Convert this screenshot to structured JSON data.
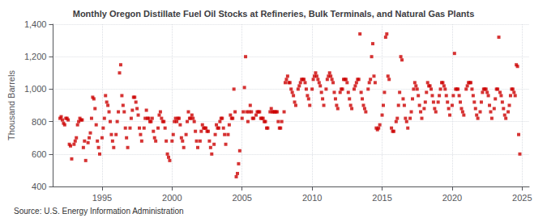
{
  "chart_data": {
    "type": "scatter",
    "title": "Monthly Oregon Distillate Fuel Oil Stocks at Refineries, Bulk Terminals, and Natural Gas Plants",
    "ylabel": "Thousand Barrels",
    "annotations": [
      "Source: U.S. Energy Information Administration"
    ],
    "color": "#cc0000",
    "marker": "square",
    "grid": true,
    "xlim": [
      1991.5,
      2025.5
    ],
    "xticks": [
      1995,
      2000,
      2005,
      2010,
      2015,
      2020,
      2025
    ],
    "ylim": [
      400,
      1400
    ],
    "yticks": [
      400,
      600,
      800,
      {
        "value": 1000,
        "label": "1,000"
      },
      {
        "value": 1200,
        "label": "1,200"
      },
      {
        "value": 1400,
        "label": "1,400"
      }
    ],
    "x": [
      1992.0,
      1992.083,
      1992.167,
      1992.25,
      1992.333,
      1992.417,
      1992.5,
      1992.583,
      1992.667,
      1992.75,
      1992.833,
      1993.0,
      1993.083,
      1993.167,
      1993.25,
      1993.333,
      1993.417,
      1993.5,
      1993.583,
      1993.667,
      1993.75,
      1993.833,
      1994.0,
      1994.083,
      1994.167,
      1994.25,
      1994.333,
      1994.417,
      1994.5,
      1994.583,
      1994.667,
      1994.75,
      1994.833,
      1995.0,
      1995.083,
      1995.167,
      1995.25,
      1995.333,
      1995.417,
      1995.5,
      1995.583,
      1995.667,
      1995.75,
      1995.833,
      1996.0,
      1996.083,
      1996.167,
      1996.25,
      1996.333,
      1996.417,
      1996.5,
      1996.583,
      1996.667,
      1996.75,
      1996.833,
      1997.0,
      1997.083,
      1997.167,
      1997.25,
      1997.333,
      1997.417,
      1997.5,
      1997.583,
      1997.667,
      1997.75,
      1997.833,
      1998.0,
      1998.083,
      1998.167,
      1998.25,
      1998.333,
      1998.417,
      1998.5,
      1998.583,
      1998.667,
      1998.75,
      1998.833,
      1999.0,
      1999.083,
      1999.167,
      1999.25,
      1999.333,
      1999.417,
      1999.5,
      1999.583,
      1999.667,
      1999.75,
      1999.833,
      2000.0,
      2000.083,
      2000.167,
      2000.25,
      2000.333,
      2000.417,
      2000.5,
      2000.583,
      2000.667,
      2000.75,
      2000.833,
      2001.0,
      2001.083,
      2001.167,
      2001.25,
      2001.333,
      2001.417,
      2001.5,
      2001.583,
      2001.667,
      2001.75,
      2001.833,
      2002.0,
      2002.083,
      2002.167,
      2002.25,
      2002.333,
      2002.417,
      2002.5,
      2002.583,
      2002.667,
      2002.75,
      2002.833,
      2003.0,
      2003.083,
      2003.167,
      2003.25,
      2003.333,
      2003.417,
      2003.5,
      2003.583,
      2003.667,
      2003.75,
      2003.833,
      2004.0,
      2004.083,
      2004.167,
      2004.25,
      2004.333,
      2004.417,
      2004.5,
      2004.583,
      2004.667,
      2004.75,
      2004.833,
      2005.0,
      2005.083,
      2005.167,
      2005.25,
      2005.333,
      2005.417,
      2005.5,
      2005.583,
      2005.667,
      2005.75,
      2005.833,
      2006.0,
      2006.083,
      2006.167,
      2006.25,
      2006.333,
      2006.417,
      2006.5,
      2006.583,
      2006.667,
      2006.75,
      2006.833,
      2007.0,
      2007.083,
      2007.167,
      2007.25,
      2007.333,
      2007.417,
      2007.5,
      2007.583,
      2007.667,
      2007.75,
      2007.833,
      2008.0,
      2008.083,
      2008.167,
      2008.25,
      2008.333,
      2008.417,
      2008.5,
      2008.583,
      2008.667,
      2008.75,
      2008.833,
      2009.0,
      2009.083,
      2009.167,
      2009.25,
      2009.333,
      2009.417,
      2009.5,
      2009.583,
      2009.667,
      2009.75,
      2009.833,
      2010.0,
      2010.083,
      2010.167,
      2010.25,
      2010.333,
      2010.417,
      2010.5,
      2010.583,
      2010.667,
      2010.75,
      2010.833,
      2011.0,
      2011.083,
      2011.167,
      2011.25,
      2011.333,
      2011.417,
      2011.5,
      2011.583,
      2011.667,
      2011.75,
      2011.833,
      2012.0,
      2012.083,
      2012.167,
      2012.25,
      2012.333,
      2012.417,
      2012.5,
      2012.583,
      2012.667,
      2012.75,
      2012.833,
      2013.0,
      2013.083,
      2013.167,
      2013.25,
      2013.333,
      2013.417,
      2013.5,
      2013.583,
      2013.667,
      2013.75,
      2013.833,
      2014.0,
      2014.083,
      2014.167,
      2014.25,
      2014.333,
      2014.417,
      2014.5,
      2014.583,
      2014.667,
      2014.75,
      2014.833,
      2015.0,
      2015.083,
      2015.167,
      2015.25,
      2015.333,
      2015.417,
      2015.5,
      2015.667,
      2015.75,
      2015.833,
      2016.0,
      2016.083,
      2016.167,
      2016.25,
      2016.333,
      2016.417,
      2016.5,
      2016.583,
      2016.667,
      2016.75,
      2016.833,
      2017.0,
      2017.083,
      2017.167,
      2017.25,
      2017.333,
      2017.417,
      2017.5,
      2017.583,
      2017.667,
      2017.75,
      2017.833,
      2018.0,
      2018.083,
      2018.167,
      2018.25,
      2018.333,
      2018.417,
      2018.5,
      2018.583,
      2018.667,
      2018.75,
      2018.833,
      2019.0,
      2019.083,
      2019.167,
      2019.25,
      2019.333,
      2019.417,
      2019.5,
      2019.583,
      2019.667,
      2019.75,
      2019.833,
      2020.0,
      2020.083,
      2020.167,
      2020.25,
      2020.333,
      2020.417,
      2020.5,
      2020.583,
      2020.667,
      2020.75,
      2020.833,
      2021.0,
      2021.083,
      2021.167,
      2021.25,
      2021.333,
      2021.417,
      2021.5,
      2021.583,
      2021.667,
      2021.75,
      2021.833,
      2022.0,
      2022.083,
      2022.167,
      2022.25,
      2022.333,
      2022.417,
      2022.5,
      2022.583,
      2022.667,
      2022.75,
      2022.833,
      2023.0,
      2023.083,
      2023.167,
      2023.25,
      2023.333,
      2023.417,
      2023.5,
      2023.583,
      2023.667,
      2023.75,
      2023.833,
      2024.0,
      2024.083,
      2024.167,
      2024.25,
      2024.333,
      2024.417,
      2024.5,
      2024.583,
      2024.667,
      2024.75,
      2024.833
    ],
    "values": [
      820,
      830,
      810,
      790,
      780,
      820,
      820,
      810,
      660,
      650,
      570,
      660,
      680,
      700,
      780,
      800,
      820,
      810,
      810,
      640,
      680,
      560,
      670,
      700,
      730,
      820,
      950,
      940,
      880,
      780,
      680,
      640,
      600,
      700,
      760,
      820,
      960,
      920,
      900,
      860,
      800,
      720,
      680,
      640,
      720,
      800,
      860,
      1100,
      1150,
      960,
      900,
      860,
      760,
      700,
      640,
      760,
      820,
      870,
      950,
      950,
      920,
      880,
      840,
      760,
      720,
      680,
      760,
      820,
      870,
      820,
      820,
      800,
      800,
      820,
      740,
      700,
      680,
      760,
      840,
      860,
      820,
      800,
      800,
      760,
      680,
      600,
      580,
      560,
      680,
      720,
      800,
      820,
      800,
      820,
      820,
      780,
      700,
      680,
      640,
      720,
      800,
      860,
      820,
      820,
      840,
      820,
      800,
      740,
      680,
      640,
      680,
      740,
      780,
      760,
      760,
      760,
      740,
      740,
      680,
      640,
      600,
      660,
      720,
      780,
      760,
      760,
      800,
      820,
      820,
      760,
      720,
      660,
      720,
      780,
      840,
      820,
      820,
      1000,
      860,
      460,
      480,
      540,
      620,
      820,
      860,
      1010,
      1200,
      860,
      800,
      860,
      900,
      860,
      820,
      820,
      840,
      860,
      860,
      860,
      820,
      820,
      820,
      800,
      800,
      760,
      760,
      860,
      880,
      860,
      860,
      860,
      860,
      860,
      800,
      760,
      760,
      800,
      860,
      1040,
      1060,
      1080,
      1040,
      1040,
      1000,
      980,
      960,
      920,
      900,
      1000,
      1020,
      1040,
      1060,
      1060,
      1060,
      1040,
      1000,
      960,
      940,
      900,
      1000,
      1060,
      1080,
      1100,
      1080,
      1060,
      1040,
      1020,
      980,
      940,
      900,
      1000,
      1060,
      1080,
      1100,
      1080,
      1060,
      1040,
      980,
      940,
      900,
      880,
      980,
      1000,
      1000,
      1060,
      1060,
      1060,
      1040,
      980,
      940,
      900,
      880,
      1000,
      1020,
      1040,
      1060,
      1060,
      1340,
      980,
      940,
      900,
      880,
      860,
      1000,
      1040,
      1060,
      1200,
      1280,
      1080,
      1040,
      760,
      750,
      760,
      780,
      840,
      900,
      980,
      1320,
      1340,
      1080,
      1060,
      760,
      740,
      740,
      800,
      820,
      900,
      980,
      1200,
      1180,
      940,
      900,
      820,
      800,
      760,
      820,
      860,
      940,
      1000,
      1040,
      1020,
      1000,
      960,
      900,
      860,
      820,
      880,
      920,
      980,
      1040,
      1020,
      1020,
      1000,
      960,
      920,
      880,
      860,
      920,
      960,
      1000,
      1040,
      1040,
      1020,
      1000,
      960,
      920,
      880,
      840,
      900,
      960,
      1220,
      1000,
      1000,
      1000,
      960,
      920,
      880,
      860,
      840,
      1000,
      1020,
      1040,
      1040,
      1040,
      1000,
      960,
      920,
      880,
      840,
      820,
      860,
      920,
      980,
      1000,
      1000,
      1000,
      980,
      960,
      900,
      860,
      820,
      880,
      940,
      1000,
      1000,
      1320,
      980,
      960,
      920,
      880,
      840,
      820,
      860,
      900,
      960,
      1000,
      1000,
      980,
      960,
      1150,
      1140,
      720,
      600
    ]
  }
}
